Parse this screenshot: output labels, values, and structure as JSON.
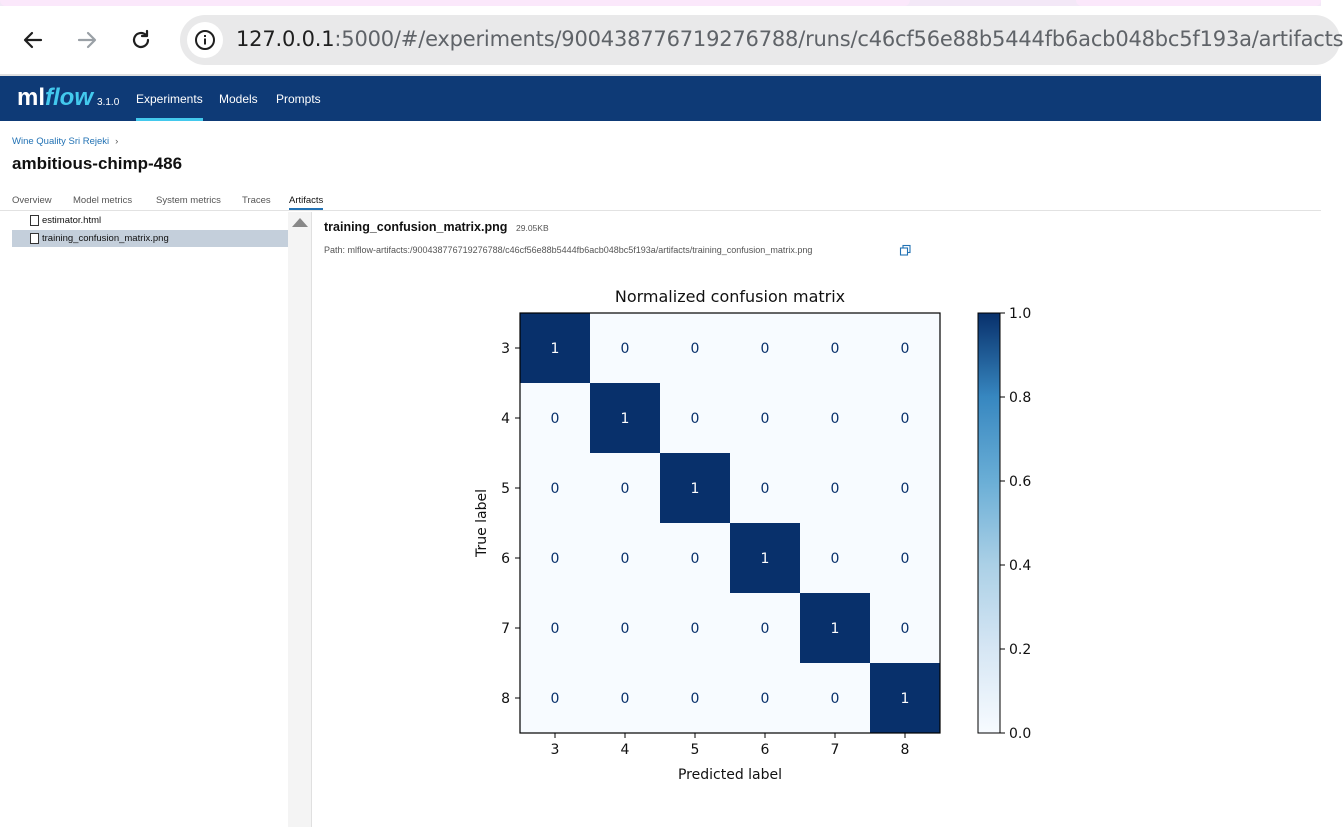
{
  "browser": {
    "url_host": "127.0.0.1",
    "url_rest": ":5000/#/experiments/900438776719276788/runs/c46cf56e88b5444fb6acb048bc5f193a/artifacts"
  },
  "header": {
    "logo_ml": "ml",
    "logo_flow": "flow",
    "version": "3.1.0",
    "nav": [
      {
        "label": "Experiments",
        "active": true
      },
      {
        "label": "Models",
        "active": false
      },
      {
        "label": "Prompts",
        "active": false
      }
    ]
  },
  "page": {
    "breadcrumb": "Wine Quality Sri Rejeki",
    "breadcrumb_chevron": "›",
    "run_name": "ambitious-chimp-486",
    "tabs": [
      {
        "label": "Overview"
      },
      {
        "label": "Model metrics"
      },
      {
        "label": "System metrics"
      },
      {
        "label": "Traces"
      },
      {
        "label": "Artifacts",
        "active": true
      }
    ]
  },
  "artifacts": {
    "files": [
      {
        "name": "estimator.html",
        "selected": false
      },
      {
        "name": "training_confusion_matrix.png",
        "selected": true
      }
    ],
    "selected_file": "training_confusion_matrix.png",
    "selected_size": "29.05KB",
    "path": "Path: mlflow-artifacts:/900438776719276788/c46cf56e88b5444fb6acb048bc5f193a/artifacts/training_confusion_matrix.png"
  },
  "chart_data": {
    "type": "heatmap",
    "title": "Normalized confusion matrix",
    "xlabel": "Predicted label",
    "ylabel": "True label",
    "x_categories": [
      "3",
      "4",
      "5",
      "6",
      "7",
      "8"
    ],
    "y_categories": [
      "3",
      "4",
      "5",
      "6",
      "7",
      "8"
    ],
    "values": [
      [
        1,
        0,
        0,
        0,
        0,
        0
      ],
      [
        0,
        1,
        0,
        0,
        0,
        0
      ],
      [
        0,
        0,
        1,
        0,
        0,
        0
      ],
      [
        0,
        0,
        0,
        1,
        0,
        0
      ],
      [
        0,
        0,
        0,
        0,
        1,
        0
      ],
      [
        0,
        0,
        0,
        0,
        0,
        1
      ]
    ],
    "colorbar_ticks": [
      "0.0",
      "0.2",
      "0.4",
      "0.6",
      "0.8",
      "1.0"
    ],
    "colorbar_range": [
      0,
      1
    ],
    "colormap_low": "#f7fbff",
    "colormap_high": "#08306b"
  }
}
